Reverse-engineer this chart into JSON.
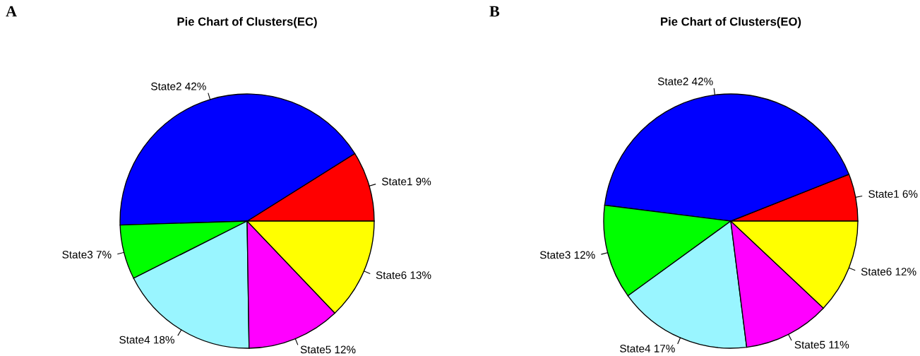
{
  "chart_data": [
    {
      "type": "pie",
      "title": "Pie Chart of Clusters(EC)",
      "annotations": [
        "A"
      ],
      "categories": [
        "State1",
        "State2",
        "State3",
        "State4",
        "State5",
        "State6"
      ],
      "values": [
        9,
        42,
        7,
        18,
        12,
        13
      ],
      "value_labels": [
        "9%",
        "42%",
        "7%",
        "18%",
        "12%",
        "13%"
      ],
      "colors": [
        "#ff0000",
        "#0000ff",
        "#00ff00",
        "#99f5ff",
        "#ff00ff",
        "#ffff00"
      ]
    },
    {
      "type": "pie",
      "title": "Pie Chart of Clusters(EO)",
      "annotations": [
        "B"
      ],
      "categories": [
        "State1",
        "State2",
        "State3",
        "State4",
        "State5",
        "State6"
      ],
      "values": [
        6,
        42,
        12,
        17,
        11,
        12
      ],
      "value_labels": [
        "6%",
        "42%",
        "12%",
        "17%",
        "11%",
        "12%"
      ],
      "colors": [
        "#ff0000",
        "#0000ff",
        "#00ff00",
        "#99f5ff",
        "#ff00ff",
        "#ffff00"
      ]
    }
  ]
}
